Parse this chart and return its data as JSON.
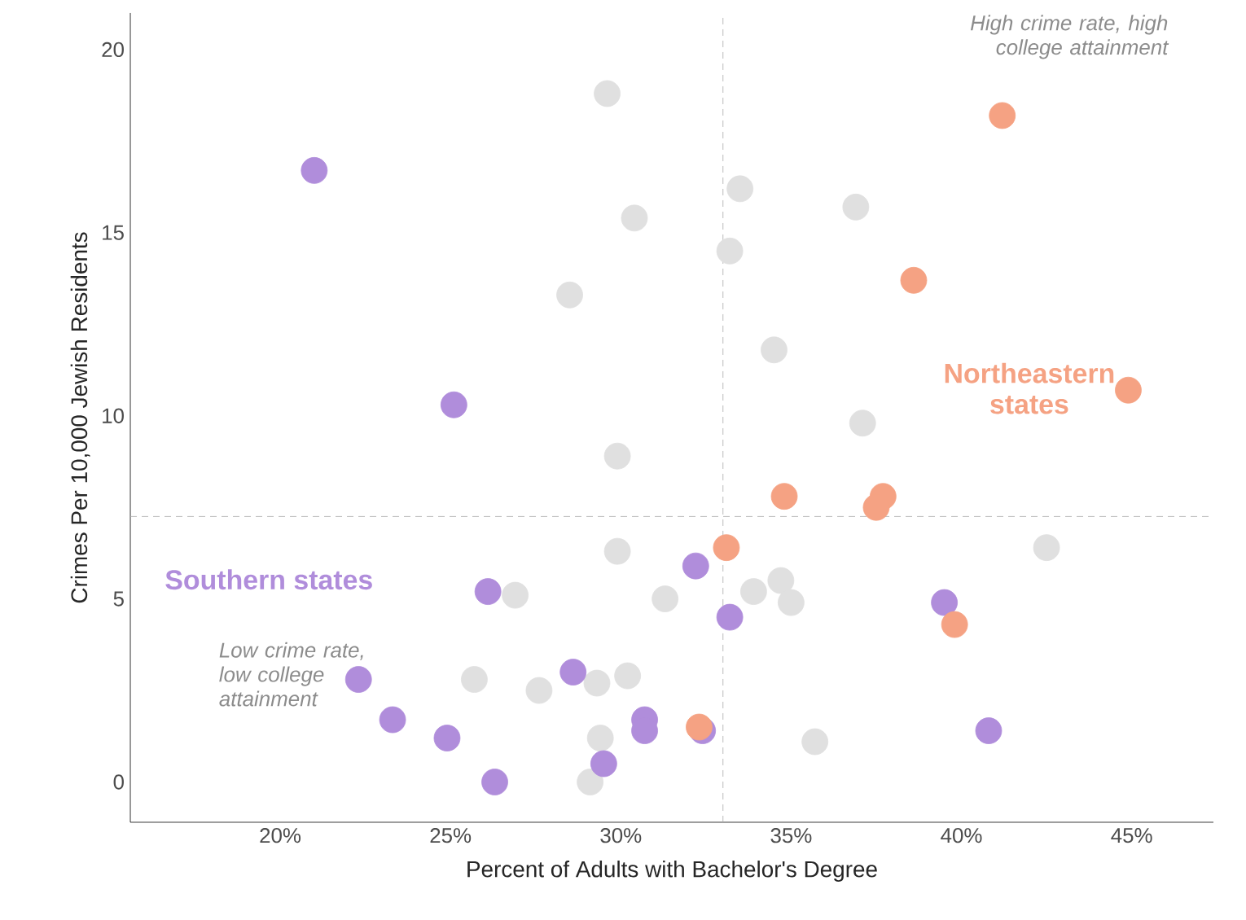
{
  "chart_data": {
    "type": "scatter",
    "xlabel": "Percent of Adults with Bachelor's Degree",
    "ylabel": "Crimes Per 10,000 Jewish Residents",
    "xlim": [
      15.6,
      47.4
    ],
    "ylim": [
      -1.1,
      21
    ],
    "xticks": [
      {
        "value": 20,
        "label": "20%"
      },
      {
        "value": 25,
        "label": "25%"
      },
      {
        "value": 30,
        "label": "30%"
      },
      {
        "value": 35,
        "label": "35%"
      },
      {
        "value": 40,
        "label": "40%"
      },
      {
        "value": 45,
        "label": "45%"
      }
    ],
    "yticks": [
      0,
      5,
      10,
      15,
      20
    ],
    "grid": false,
    "series": [
      {
        "color": "#e0e0e0",
        "x": [
          29.6,
          33.5,
          36.9,
          30.4,
          33.2,
          28.5,
          34.5,
          37.1,
          29.9,
          42.5,
          29.9,
          33.9,
          34.7,
          35.0,
          26.9,
          31.3,
          25.7,
          27.6,
          29.3,
          30.2,
          29.4,
          29.1,
          35.7
        ],
        "values": [
          18.8,
          16.2,
          15.7,
          15.4,
          14.5,
          13.3,
          11.8,
          9.8,
          8.9,
          6.4,
          6.3,
          5.2,
          5.5,
          4.9,
          5.1,
          5.0,
          2.8,
          2.5,
          2.7,
          2.9,
          1.2,
          0.0,
          1.1
        ]
      },
      {
        "color": "#b08ddb",
        "x": [
          21.0,
          25.1,
          26.1,
          22.3,
          23.3,
          24.9,
          26.3,
          28.6,
          30.7,
          30.7,
          29.5,
          32.2,
          33.2,
          32.4,
          39.5,
          40.8
        ],
        "values": [
          16.7,
          10.3,
          5.2,
          2.8,
          1.7,
          1.2,
          0.0,
          3.0,
          1.7,
          1.4,
          0.5,
          5.9,
          4.5,
          1.4,
          4.9,
          1.4
        ]
      },
      {
        "color": "#f5a283",
        "x": [
          41.2,
          38.6,
          44.9,
          34.8,
          37.7,
          37.5,
          33.1,
          39.8,
          32.3
        ],
        "values": [
          18.2,
          13.7,
          10.7,
          7.8,
          7.8,
          7.5,
          6.4,
          4.3,
          1.5
        ]
      }
    ],
    "ref_lines": [
      {
        "axis": "x",
        "value": 33,
        "color": "#aaaaaa",
        "line_style": "dashed"
      },
      {
        "axis": "y",
        "value": 7.25,
        "color": "#aaaaaa",
        "line_style": "dashed"
      }
    ],
    "annotations": [
      "High crime rate, high college attainment",
      "Northeastern states",
      "Southern states",
      "Low crime rate, low college attainment"
    ]
  }
}
